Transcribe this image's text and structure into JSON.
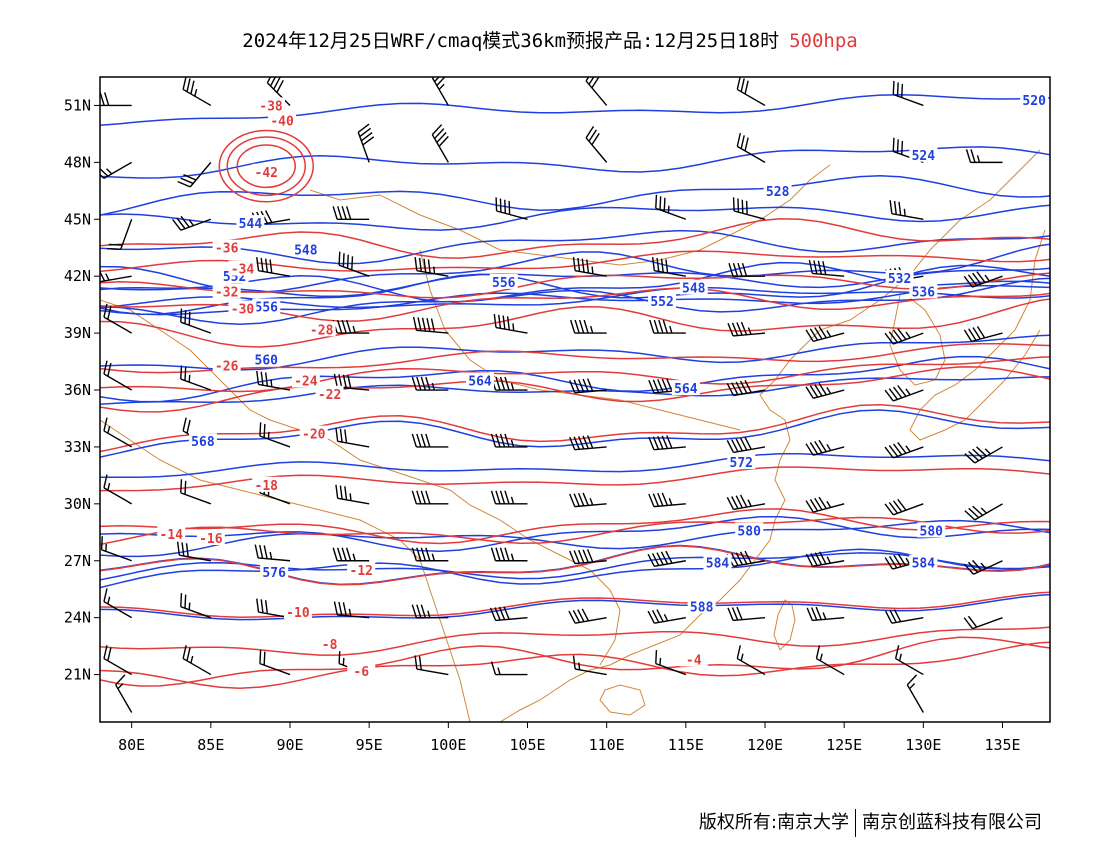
{
  "title": {
    "main": "2024年12月25日WRF/cmaq模式36km预报产品:12月25日18时",
    "level": "500hpa"
  },
  "footer": {
    "copyright": "版权所有:南京大学",
    "company": "南京创蓝科技有限公司"
  },
  "colors": {
    "height_contour": "#1f3fe0",
    "temperature_contour": "#e23b3b",
    "coastline": "#d2873a",
    "wind_barb": "#000000",
    "frame": "#000000"
  },
  "map": {
    "projection": "lat-lon",
    "lon_range": [
      78,
      138
    ],
    "lat_range": [
      18.5,
      52.5
    ],
    "lon_ticks": [
      "80E",
      "85E",
      "90E",
      "95E",
      "100E",
      "105E",
      "110E",
      "115E",
      "120E",
      "125E",
      "130E",
      "135E"
    ],
    "lat_ticks": [
      "51N",
      "48N",
      "45N",
      "42N",
      "39N",
      "36N",
      "33N",
      "30N",
      "27N",
      "24N",
      "21N"
    ],
    "height_contours": [
      {
        "value": 520,
        "label": "520",
        "lon": 137,
        "lat": 51.3
      },
      {
        "value": 524,
        "label": "524",
        "lon": 130,
        "lat": 48.4
      },
      {
        "value": 528,
        "label": "528",
        "lon": 120.8,
        "lat": 46.5
      },
      {
        "value": 532,
        "label": "532",
        "lon": 128.5,
        "lat": 41.9
      },
      {
        "value": 536,
        "label": "536",
        "lon": 130,
        "lat": 41.2
      },
      {
        "value": 544,
        "label": "544",
        "lon": 87.5,
        "lat": 44.8
      },
      {
        "value": 548,
        "label": "548",
        "lon": 91,
        "lat": 43.4
      },
      {
        "value": 552,
        "label": "552",
        "lon": 86.5,
        "lat": 42.0
      },
      {
        "value": 556,
        "label": "556",
        "lon": 88.5,
        "lat": 40.4
      },
      {
        "value": 560,
        "label": "560",
        "lon": 88.5,
        "lat": 37.6
      },
      {
        "value": 564,
        "label": "564",
        "lon": 102,
        "lat": 36.5
      },
      {
        "value": 568,
        "label": "568",
        "lon": 84.5,
        "lat": 33.3
      },
      {
        "value": 572,
        "label": "572",
        "lon": 118.5,
        "lat": 32.2
      },
      {
        "value": 576,
        "label": "576",
        "lon": 89,
        "lat": 26.4
      },
      {
        "value": 580,
        "label": "580",
        "lon": 119,
        "lat": 28.6
      },
      {
        "value": 584,
        "label": "584",
        "lon": 117,
        "lat": 26.9
      },
      {
        "value": 588,
        "label": "588",
        "lon": 116,
        "lat": 24.6
      },
      {
        "value": 556,
        "label": "556",
        "lon": 103.5,
        "lat": 41.7
      },
      {
        "value": 552,
        "label": "552",
        "lon": 113.5,
        "lat": 40.7
      },
      {
        "value": 548,
        "label": "548",
        "lon": 115.5,
        "lat": 41.4
      },
      {
        "value": 564,
        "label": "564",
        "lon": 115,
        "lat": 36.1
      },
      {
        "value": 580,
        "label": "580",
        "lon": 130.5,
        "lat": 28.6
      },
      {
        "value": 584,
        "label": "584",
        "lon": 130,
        "lat": 26.9
      }
    ],
    "temperature_contours": [
      {
        "value": -42,
        "label": "-42",
        "lon": 88.5,
        "lat": 47.5
      },
      {
        "value": -40,
        "label": "-40",
        "lon": 89.5,
        "lat": 50.2
      },
      {
        "value": -38,
        "label": "-38",
        "lon": 88.8,
        "lat": 51.0
      },
      {
        "value": -36,
        "label": "-36",
        "lon": 86,
        "lat": 43.5
      },
      {
        "value": -34,
        "label": "-34",
        "lon": 87,
        "lat": 42.4
      },
      {
        "value": -32,
        "label": "-32",
        "lon": 86,
        "lat": 41.2
      },
      {
        "value": -30,
        "label": "-30",
        "lon": 87,
        "lat": 40.3
      },
      {
        "value": -28,
        "label": "-28",
        "lon": 92,
        "lat": 39.2
      },
      {
        "value": -26,
        "label": "-26",
        "lon": 86,
        "lat": 37.3
      },
      {
        "value": -24,
        "label": "-24",
        "lon": 91,
        "lat": 36.5
      },
      {
        "value": -22,
        "label": "-22",
        "lon": 92.5,
        "lat": 35.8
      },
      {
        "value": -20,
        "label": "-20",
        "lon": 91.5,
        "lat": 33.7
      },
      {
        "value": -18,
        "label": "-18",
        "lon": 88.5,
        "lat": 31.0
      },
      {
        "value": -16,
        "label": "-16",
        "lon": 85,
        "lat": 28.2
      },
      {
        "value": -14,
        "label": "-14",
        "lon": 82.5,
        "lat": 28.4
      },
      {
        "value": -12,
        "label": "-12",
        "lon": 94.5,
        "lat": 26.5
      },
      {
        "value": -10,
        "label": "-10",
        "lon": 90.5,
        "lat": 24.3
      },
      {
        "value": -8,
        "label": "-8",
        "lon": 92.5,
        "lat": 22.6
      },
      {
        "value": -6,
        "label": "-6",
        "lon": 94.5,
        "lat": 21.2
      },
      {
        "value": -4,
        "label": "-4",
        "lon": 115.5,
        "lat": 21.8
      }
    ],
    "wind_barbs": [
      {
        "lon": 80,
        "lat": 51,
        "dir": 270,
        "speed": 30
      },
      {
        "lon": 85,
        "lat": 51,
        "dir": 300,
        "speed": 35
      },
      {
        "lon": 90,
        "lat": 51,
        "dir": 315,
        "speed": 40
      },
      {
        "lon": 100,
        "lat": 51,
        "dir": 330,
        "speed": 35
      },
      {
        "lon": 110,
        "lat": 51,
        "dir": 320,
        "speed": 30
      },
      {
        "lon": 120,
        "lat": 51,
        "dir": 300,
        "speed": 30
      },
      {
        "lon": 130,
        "lat": 51,
        "dir": 290,
        "speed": 30
      },
      {
        "lon": 80,
        "lat": 48,
        "dir": 240,
        "speed": 25
      },
      {
        "lon": 85,
        "lat": 48,
        "dir": 220,
        "speed": 30
      },
      {
        "lon": 95,
        "lat": 48,
        "dir": 340,
        "speed": 40
      },
      {
        "lon": 100,
        "lat": 48,
        "dir": 330,
        "speed": 40
      },
      {
        "lon": 110,
        "lat": 48,
        "dir": 320,
        "speed": 30
      },
      {
        "lon": 120,
        "lat": 48,
        "dir": 300,
        "speed": 30
      },
      {
        "lon": 130,
        "lat": 48,
        "dir": 290,
        "speed": 30
      },
      {
        "lon": 135,
        "lat": 48,
        "dir": 270,
        "speed": 25
      },
      {
        "lon": 80,
        "lat": 45,
        "dir": 200,
        "speed": 20
      },
      {
        "lon": 85,
        "lat": 45,
        "dir": 250,
        "speed": 35
      },
      {
        "lon": 90,
        "lat": 45,
        "dir": 260,
        "speed": 40
      },
      {
        "lon": 95,
        "lat": 45,
        "dir": 270,
        "speed": 40
      },
      {
        "lon": 105,
        "lat": 45,
        "dir": 285,
        "speed": 40
      },
      {
        "lon": 115,
        "lat": 45,
        "dir": 290,
        "speed": 35
      },
      {
        "lon": 120,
        "lat": 45,
        "dir": 285,
        "speed": 40
      },
      {
        "lon": 130,
        "lat": 45,
        "dir": 280,
        "speed": 35
      },
      {
        "lon": 80,
        "lat": 42,
        "dir": 260,
        "speed": 25
      },
      {
        "lon": 90,
        "lat": 42,
        "dir": 280,
        "speed": 40
      },
      {
        "lon": 95,
        "lat": 42,
        "dir": 290,
        "speed": 40
      },
      {
        "lon": 100,
        "lat": 42,
        "dir": 280,
        "speed": 45
      },
      {
        "lon": 110,
        "lat": 42,
        "dir": 280,
        "speed": 45
      },
      {
        "lon": 115,
        "lat": 42,
        "dir": 280,
        "speed": 40
      },
      {
        "lon": 120,
        "lat": 42,
        "dir": 270,
        "speed": 40
      },
      {
        "lon": 125,
        "lat": 42,
        "dir": 275,
        "speed": 40
      },
      {
        "lon": 130,
        "lat": 42,
        "dir": 260,
        "speed": 45
      },
      {
        "lon": 135,
        "lat": 42,
        "dir": 250,
        "speed": 45
      },
      {
        "lon": 80,
        "lat": 39,
        "dir": 300,
        "speed": 20
      },
      {
        "lon": 85,
        "lat": 39,
        "dir": 290,
        "speed": 30
      },
      {
        "lon": 95,
        "lat": 39,
        "dir": 270,
        "speed": 45
      },
      {
        "lon": 100,
        "lat": 39,
        "dir": 275,
        "speed": 50
      },
      {
        "lon": 105,
        "lat": 39,
        "dir": 280,
        "speed": 45
      },
      {
        "lon": 110,
        "lat": 39,
        "dir": 270,
        "speed": 45
      },
      {
        "lon": 115,
        "lat": 39,
        "dir": 270,
        "speed": 45
      },
      {
        "lon": 120,
        "lat": 39,
        "dir": 265,
        "speed": 45
      },
      {
        "lon": 125,
        "lat": 39,
        "dir": 255,
        "speed": 45
      },
      {
        "lon": 130,
        "lat": 39,
        "dir": 250,
        "speed": 45
      },
      {
        "lon": 135,
        "lat": 39,
        "dir": 255,
        "speed": 40
      },
      {
        "lon": 80,
        "lat": 36,
        "dir": 300,
        "speed": 20
      },
      {
        "lon": 85,
        "lat": 36,
        "dir": 290,
        "speed": 25
      },
      {
        "lon": 90,
        "lat": 36,
        "dir": 280,
        "speed": 35
      },
      {
        "lon": 95,
        "lat": 36,
        "dir": 275,
        "speed": 40
      },
      {
        "lon": 100,
        "lat": 36,
        "dir": 270,
        "speed": 45
      },
      {
        "lon": 105,
        "lat": 36,
        "dir": 270,
        "speed": 45
      },
      {
        "lon": 110,
        "lat": 36,
        "dir": 265,
        "speed": 50
      },
      {
        "lon": 115,
        "lat": 36,
        "dir": 265,
        "speed": 50
      },
      {
        "lon": 120,
        "lat": 36,
        "dir": 260,
        "speed": 50
      },
      {
        "lon": 125,
        "lat": 36,
        "dir": 255,
        "speed": 45
      },
      {
        "lon": 130,
        "lat": 36,
        "dir": 250,
        "speed": 45
      },
      {
        "lon": 80,
        "lat": 33,
        "dir": 300,
        "speed": 15
      },
      {
        "lon": 85,
        "lat": 33,
        "dir": 300,
        "speed": 20
      },
      {
        "lon": 90,
        "lat": 33,
        "dir": 290,
        "speed": 25
      },
      {
        "lon": 95,
        "lat": 33,
        "dir": 280,
        "speed": 30
      },
      {
        "lon": 100,
        "lat": 33,
        "dir": 270,
        "speed": 40
      },
      {
        "lon": 105,
        "lat": 33,
        "dir": 270,
        "speed": 45
      },
      {
        "lon": 110,
        "lat": 33,
        "dir": 265,
        "speed": 50
      },
      {
        "lon": 115,
        "lat": 33,
        "dir": 265,
        "speed": 50
      },
      {
        "lon": 120,
        "lat": 33,
        "dir": 260,
        "speed": 50
      },
      {
        "lon": 125,
        "lat": 33,
        "dir": 255,
        "speed": 45
      },
      {
        "lon": 130,
        "lat": 33,
        "dir": 250,
        "speed": 45
      },
      {
        "lon": 135,
        "lat": 33,
        "dir": 240,
        "speed": 45
      },
      {
        "lon": 80,
        "lat": 30,
        "dir": 300,
        "speed": 15
      },
      {
        "lon": 85,
        "lat": 30,
        "dir": 290,
        "speed": 20
      },
      {
        "lon": 90,
        "lat": 30,
        "dir": 290,
        "speed": 25
      },
      {
        "lon": 95,
        "lat": 30,
        "dir": 280,
        "speed": 35
      },
      {
        "lon": 100,
        "lat": 30,
        "dir": 270,
        "speed": 40
      },
      {
        "lon": 105,
        "lat": 30,
        "dir": 270,
        "speed": 45
      },
      {
        "lon": 110,
        "lat": 30,
        "dir": 265,
        "speed": 45
      },
      {
        "lon": 115,
        "lat": 30,
        "dir": 265,
        "speed": 45
      },
      {
        "lon": 120,
        "lat": 30,
        "dir": 260,
        "speed": 45
      },
      {
        "lon": 125,
        "lat": 30,
        "dir": 255,
        "speed": 45
      },
      {
        "lon": 130,
        "lat": 30,
        "dir": 250,
        "speed": 40
      },
      {
        "lon": 135,
        "lat": 30,
        "dir": 240,
        "speed": 35
      },
      {
        "lon": 80,
        "lat": 27,
        "dir": 290,
        "speed": 15
      },
      {
        "lon": 85,
        "lat": 27,
        "dir": 280,
        "speed": 30
      },
      {
        "lon": 90,
        "lat": 27,
        "dir": 275,
        "speed": 35
      },
      {
        "lon": 95,
        "lat": 27,
        "dir": 270,
        "speed": 45
      },
      {
        "lon": 100,
        "lat": 27,
        "dir": 270,
        "speed": 45
      },
      {
        "lon": 105,
        "lat": 27,
        "dir": 270,
        "speed": 45
      },
      {
        "lon": 110,
        "lat": 27,
        "dir": 265,
        "speed": 50
      },
      {
        "lon": 115,
        "lat": 27,
        "dir": 260,
        "speed": 50
      },
      {
        "lon": 120,
        "lat": 27,
        "dir": 260,
        "speed": 50
      },
      {
        "lon": 125,
        "lat": 27,
        "dir": 260,
        "speed": 45
      },
      {
        "lon": 130,
        "lat": 27,
        "dir": 255,
        "speed": 45
      },
      {
        "lon": 135,
        "lat": 27,
        "dir": 245,
        "speed": 35
      },
      {
        "lon": 80,
        "lat": 24,
        "dir": 300,
        "speed": 15
      },
      {
        "lon": 85,
        "lat": 24,
        "dir": 290,
        "speed": 25
      },
      {
        "lon": 90,
        "lat": 24,
        "dir": 280,
        "speed": 30
      },
      {
        "lon": 95,
        "lat": 24,
        "dir": 275,
        "speed": 35
      },
      {
        "lon": 100,
        "lat": 24,
        "dir": 270,
        "speed": 35
      },
      {
        "lon": 105,
        "lat": 24,
        "dir": 265,
        "speed": 40
      },
      {
        "lon": 110,
        "lat": 24,
        "dir": 260,
        "speed": 40
      },
      {
        "lon": 115,
        "lat": 24,
        "dir": 260,
        "speed": 35
      },
      {
        "lon": 120,
        "lat": 24,
        "dir": 265,
        "speed": 30
      },
      {
        "lon": 125,
        "lat": 24,
        "dir": 265,
        "speed": 35
      },
      {
        "lon": 130,
        "lat": 24,
        "dir": 260,
        "speed": 30
      },
      {
        "lon": 135,
        "lat": 24,
        "dir": 250,
        "speed": 20
      },
      {
        "lon": 80,
        "lat": 21,
        "dir": 300,
        "speed": 20
      },
      {
        "lon": 85,
        "lat": 21,
        "dir": 300,
        "speed": 25
      },
      {
        "lon": 90,
        "lat": 21,
        "dir": 290,
        "speed": 20
      },
      {
        "lon": 95,
        "lat": 21,
        "dir": 290,
        "speed": 15
      },
      {
        "lon": 100,
        "lat": 21,
        "dir": 280,
        "speed": 20
      },
      {
        "lon": 105,
        "lat": 21,
        "dir": 270,
        "speed": 15
      },
      {
        "lon": 110,
        "lat": 21,
        "dir": 280,
        "speed": 15
      },
      {
        "lon": 115,
        "lat": 21,
        "dir": 290,
        "speed": 15
      },
      {
        "lon": 120,
        "lat": 21,
        "dir": 300,
        "speed": 15
      },
      {
        "lon": 125,
        "lat": 21,
        "dir": 300,
        "speed": 15
      },
      {
        "lon": 130,
        "lat": 21,
        "dir": 300,
        "speed": 15
      },
      {
        "lon": 80,
        "lat": 19,
        "dir": 330,
        "speed": 15
      },
      {
        "lon": 130,
        "lat": 19,
        "dir": 330,
        "speed": 15
      }
    ]
  }
}
